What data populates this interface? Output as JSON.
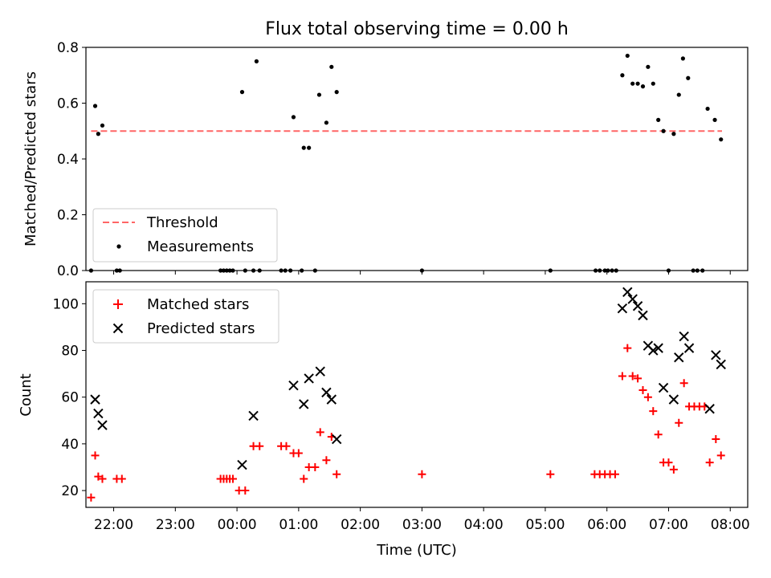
{
  "figure": {
    "title": "Flux total observing time = 0.00 h",
    "xlabel": "Time (UTC)"
  },
  "colors": {
    "threshold": "#ff6666",
    "measurements": "#000000",
    "matched": "#ff0000",
    "predicted": "#000000"
  },
  "chart_data": [
    {
      "type": "scatter",
      "panel": "top",
      "ylabel": "Matched/Predicted stars",
      "xlim": [
        "21:33",
        "08:17"
      ],
      "ylim": [
        0,
        0.8
      ],
      "yticks": [
        0.0,
        0.2,
        0.4,
        0.6,
        0.8
      ],
      "ytick_labels": [
        "0.0",
        "0.2",
        "0.4",
        "0.6",
        "0.8"
      ],
      "xticks": [
        "22:00",
        "23:00",
        "00:00",
        "01:00",
        "02:00",
        "03:00",
        "04:00",
        "05:00",
        "06:00",
        "07:00",
        "08:00"
      ],
      "legend": {
        "placement": "lower-left",
        "entries": [
          "Threshold",
          "Measurements"
        ]
      },
      "threshold": {
        "name": "Threshold",
        "y": 0.5,
        "x_range": [
          "21:38",
          "07:52"
        ],
        "style": "dashed"
      },
      "series": [
        {
          "name": "Measurements",
          "marker": "dot",
          "points": [
            [
              "21:38",
              0.0
            ],
            [
              "21:42",
              0.59
            ],
            [
              "21:45",
              0.49
            ],
            [
              "21:49",
              0.52
            ],
            [
              "22:03",
              0.0
            ],
            [
              "22:06",
              0.0
            ],
            [
              "23:44",
              0.0
            ],
            [
              "23:47",
              0.0
            ],
            [
              "23:50",
              0.0
            ],
            [
              "23:53",
              0.0
            ],
            [
              "23:56",
              0.0
            ],
            [
              "00:05",
              0.64
            ],
            [
              "00:08",
              0.0
            ],
            [
              "00:16",
              0.0
            ],
            [
              "00:19",
              0.75
            ],
            [
              "00:22",
              0.0
            ],
            [
              "00:43",
              0.0
            ],
            [
              "00:47",
              0.0
            ],
            [
              "00:52",
              0.0
            ],
            [
              "00:55",
              0.55
            ],
            [
              "01:03",
              0.0
            ],
            [
              "01:05",
              0.44
            ],
            [
              "01:10",
              0.44
            ],
            [
              "01:16",
              0.0
            ],
            [
              "01:20",
              0.63
            ],
            [
              "01:27",
              0.53
            ],
            [
              "01:32",
              0.73
            ],
            [
              "01:37",
              0.64
            ],
            [
              "03:00",
              0.0
            ],
            [
              "05:05",
              0.0
            ],
            [
              "05:49",
              0.0
            ],
            [
              "05:53",
              0.0
            ],
            [
              "05:58",
              0.0
            ],
            [
              "06:01",
              0.0
            ],
            [
              "06:05",
              0.0
            ],
            [
              "06:09",
              0.0
            ],
            [
              "06:15",
              0.7
            ],
            [
              "06:20",
              0.77
            ],
            [
              "06:25",
              0.67
            ],
            [
              "06:30",
              0.67
            ],
            [
              "06:35",
              0.66
            ],
            [
              "06:40",
              0.73
            ],
            [
              "06:45",
              0.67
            ],
            [
              "06:50",
              0.54
            ],
            [
              "06:55",
              0.5
            ],
            [
              "07:00",
              0.0
            ],
            [
              "07:05",
              0.49
            ],
            [
              "07:10",
              0.63
            ],
            [
              "07:14",
              0.76
            ],
            [
              "07:19",
              0.69
            ],
            [
              "07:24",
              0.0
            ],
            [
              "07:28",
              0.0
            ],
            [
              "07:33",
              0.0
            ],
            [
              "07:38",
              0.58
            ],
            [
              "07:45",
              0.54
            ],
            [
              "07:51",
              0.47
            ]
          ]
        }
      ]
    },
    {
      "type": "scatter",
      "panel": "bottom",
      "ylabel": "Count",
      "xlim": [
        "21:33",
        "08:17"
      ],
      "ylim": [
        12.8,
        109.4
      ],
      "yticks": [
        20,
        40,
        60,
        80,
        100
      ],
      "ytick_labels": [
        "20",
        "40",
        "60",
        "80",
        "100"
      ],
      "xticks": [
        "22:00",
        "23:00",
        "00:00",
        "01:00",
        "02:00",
        "03:00",
        "04:00",
        "05:00",
        "06:00",
        "07:00",
        "08:00"
      ],
      "legend": {
        "placement": "upper-left",
        "entries": [
          "Matched stars",
          "Predicted stars"
        ]
      },
      "series": [
        {
          "name": "Matched stars",
          "marker": "plus",
          "points": [
            [
              "21:38",
              17
            ],
            [
              "21:42",
              35
            ],
            [
              "21:45",
              26
            ],
            [
              "21:49",
              25
            ],
            [
              "22:03",
              25
            ],
            [
              "22:08",
              25
            ],
            [
              "23:44",
              25
            ],
            [
              "23:47",
              25
            ],
            [
              "23:50",
              25
            ],
            [
              "23:53",
              25
            ],
            [
              "23:56",
              25
            ],
            [
              "00:02",
              20
            ],
            [
              "00:08",
              20
            ],
            [
              "00:16",
              39
            ],
            [
              "00:22",
              39
            ],
            [
              "00:43",
              39
            ],
            [
              "00:48",
              39
            ],
            [
              "00:55",
              36
            ],
            [
              "01:00",
              36
            ],
            [
              "01:05",
              25
            ],
            [
              "01:10",
              30
            ],
            [
              "01:16",
              30
            ],
            [
              "01:21",
              45
            ],
            [
              "01:27",
              33
            ],
            [
              "01:32",
              43
            ],
            [
              "01:37",
              27
            ],
            [
              "03:00",
              27
            ],
            [
              "05:05",
              27
            ],
            [
              "05:48",
              27
            ],
            [
              "05:53",
              27
            ],
            [
              "05:58",
              27
            ],
            [
              "06:03",
              27
            ],
            [
              "06:08",
              27
            ],
            [
              "06:15",
              69
            ],
            [
              "06:20",
              81
            ],
            [
              "06:25",
              69
            ],
            [
              "06:30",
              68
            ],
            [
              "06:35",
              63
            ],
            [
              "06:40",
              60
            ],
            [
              "06:45",
              54
            ],
            [
              "06:50",
              44
            ],
            [
              "06:55",
              32
            ],
            [
              "07:00",
              32
            ],
            [
              "07:05",
              29
            ],
            [
              "07:10",
              49
            ],
            [
              "07:15",
              66
            ],
            [
              "07:20",
              56
            ],
            [
              "07:25",
              56
            ],
            [
              "07:30",
              56
            ],
            [
              "07:35",
              56
            ],
            [
              "07:40",
              32
            ],
            [
              "07:46",
              42
            ],
            [
              "07:51",
              35
            ]
          ]
        },
        {
          "name": "Predicted stars",
          "marker": "x",
          "points": [
            [
              "21:42",
              59
            ],
            [
              "21:45",
              53
            ],
            [
              "21:49",
              48
            ],
            [
              "00:05",
              31
            ],
            [
              "00:16",
              52
            ],
            [
              "00:55",
              65
            ],
            [
              "01:05",
              57
            ],
            [
              "01:10",
              68
            ],
            [
              "01:21",
              71
            ],
            [
              "01:27",
              62
            ],
            [
              "01:32",
              59
            ],
            [
              "01:37",
              42
            ],
            [
              "06:15",
              98
            ],
            [
              "06:20",
              105
            ],
            [
              "06:25",
              102
            ],
            [
              "06:30",
              99
            ],
            [
              "06:35",
              95
            ],
            [
              "06:40",
              82
            ],
            [
              "06:45",
              80
            ],
            [
              "06:50",
              81
            ],
            [
              "06:55",
              64
            ],
            [
              "07:05",
              59
            ],
            [
              "07:10",
              77
            ],
            [
              "07:15",
              86
            ],
            [
              "07:20",
              81
            ],
            [
              "07:40",
              55
            ],
            [
              "07:46",
              78
            ],
            [
              "07:51",
              74
            ]
          ]
        }
      ]
    }
  ]
}
